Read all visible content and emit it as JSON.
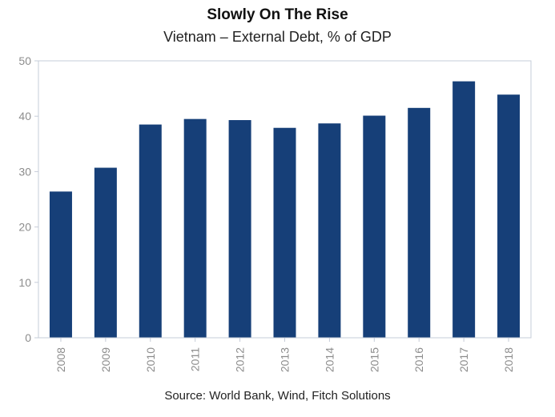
{
  "header": {
    "title": "Slowly On The Rise",
    "subtitle": "Vietnam – External Debt, % of GDP"
  },
  "footer": {
    "source": "Source: World Bank, Wind, Fitch Solutions"
  },
  "colors": {
    "bar": "#163f78",
    "axis": "#c6ccd8",
    "tick_text": "#8c8c8c"
  },
  "chart_data": {
    "type": "bar",
    "title": "Slowly On The Rise",
    "subtitle": "Vietnam – External Debt, % of GDP",
    "categories": [
      "2008",
      "2009",
      "2010",
      "2011",
      "2012",
      "2013",
      "2014",
      "2015",
      "2016",
      "2017",
      "2018"
    ],
    "values": [
      26.4,
      30.7,
      38.5,
      39.5,
      39.3,
      37.9,
      38.7,
      40.1,
      41.5,
      46.3,
      43.9
    ],
    "ylim": [
      0,
      50
    ],
    "yticks": [
      "0",
      "10",
      "20",
      "30",
      "40",
      "50"
    ],
    "xlabel": "",
    "ylabel": "",
    "grid": false,
    "legend": "none"
  }
}
